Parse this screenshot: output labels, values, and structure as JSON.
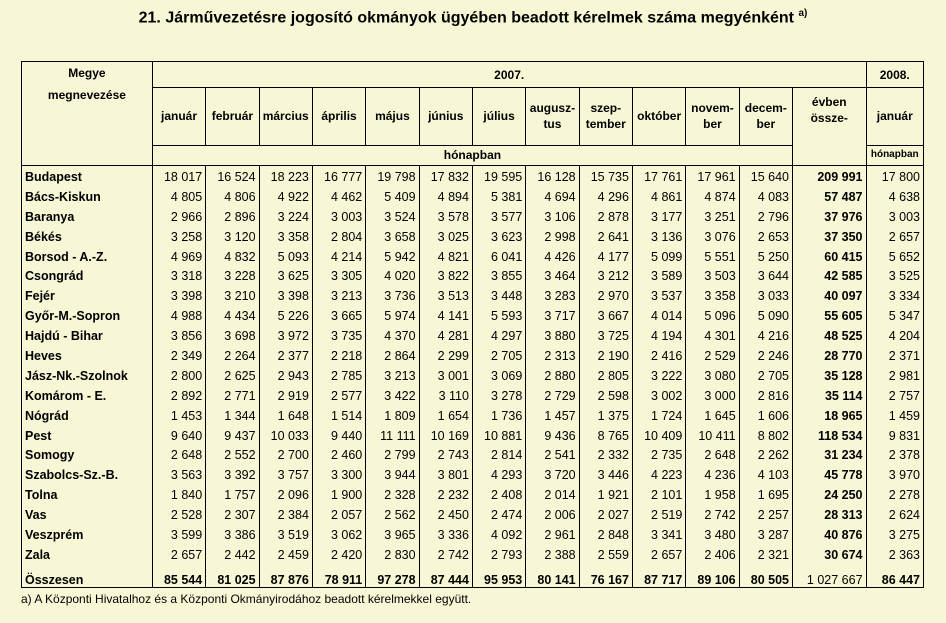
{
  "title": "21. Járművezetésre jogosító okmányok ügyében beadott kérelmek száma megyénként",
  "title_note": "a)",
  "header": {
    "county_label_1": "Megye",
    "county_label_2": "megnevezése",
    "year_2007": "2007.",
    "year_2008": "2008.",
    "months": [
      [
        "január"
      ],
      [
        "február"
      ],
      [
        "március"
      ],
      [
        "április"
      ],
      [
        "május"
      ],
      [
        "június"
      ],
      [
        "július"
      ],
      [
        "augusz-",
        "tus"
      ],
      [
        "szep-",
        "tember"
      ],
      [
        "október"
      ],
      [
        "novem-",
        "ber"
      ],
      [
        "decem-",
        "ber"
      ]
    ],
    "annual_1": "évben",
    "annual_2": "össze-",
    "jan_2008": "január",
    "unit_2007": "hónapban",
    "unit_2008": "hónapban"
  },
  "rows": [
    {
      "name": "Budapest",
      "values": [
        "18 017",
        "16 524",
        "18 223",
        "16 777",
        "19 798",
        "17 832",
        "19 595",
        "16 128",
        "15 735",
        "17 761",
        "17 961",
        "15 640"
      ],
      "total": "209 991",
      "jan2008": "17 800"
    },
    {
      "name": "Bács-Kiskun",
      "values": [
        "4 805",
        "4 806",
        "4 922",
        "4 462",
        "5 409",
        "4 894",
        "5 381",
        "4 694",
        "4 296",
        "4 861",
        "4 874",
        "4 083"
      ],
      "total": "57 487",
      "jan2008": "4 638"
    },
    {
      "name": "Baranya",
      "values": [
        "2 966",
        "2 896",
        "3 224",
        "3 003",
        "3 524",
        "3 578",
        "3 577",
        "3 106",
        "2 878",
        "3 177",
        "3 251",
        "2 796"
      ],
      "total": "37 976",
      "jan2008": "3 003"
    },
    {
      "name": "Békés",
      "values": [
        "3 258",
        "3 120",
        "3 358",
        "2 804",
        "3 658",
        "3 025",
        "3 623",
        "2 998",
        "2 641",
        "3 136",
        "3 076",
        "2 653"
      ],
      "total": "37 350",
      "jan2008": "2 657"
    },
    {
      "name": "Borsod - A.-Z.",
      "values": [
        "4 969",
        "4 832",
        "5 093",
        "4 214",
        "5 942",
        "4 821",
        "6 041",
        "4 426",
        "4 177",
        "5 099",
        "5 551",
        "5 250"
      ],
      "total": "60 415",
      "jan2008": "5 652"
    },
    {
      "name": "Csongrád",
      "values": [
        "3 318",
        "3 228",
        "3 625",
        "3 305",
        "4 020",
        "3 822",
        "3 855",
        "3 464",
        "3 212",
        "3 589",
        "3 503",
        "3 644"
      ],
      "total": "42 585",
      "jan2008": "3 525"
    },
    {
      "name": "Fejér",
      "values": [
        "3 398",
        "3 210",
        "3 398",
        "3 213",
        "3 736",
        "3 513",
        "3 448",
        "3 283",
        "2 970",
        "3 537",
        "3 358",
        "3 033"
      ],
      "total": "40 097",
      "jan2008": "3 334"
    },
    {
      "name": "Győr-M.-Sopron",
      "values": [
        "4 988",
        "4 434",
        "5 226",
        "3 665",
        "5 974",
        "4 141",
        "5 593",
        "3 717",
        "3 667",
        "4 014",
        "5 096",
        "5 090"
      ],
      "total": "55 605",
      "jan2008": "5 347"
    },
    {
      "name": "Hajdú - Bihar",
      "values": [
        "3 856",
        "3 698",
        "3 972",
        "3 735",
        "4 370",
        "4 281",
        "4 297",
        "3 880",
        "3 725",
        "4 194",
        "4 301",
        "4 216"
      ],
      "total": "48 525",
      "jan2008": "4 204"
    },
    {
      "name": "Heves",
      "values": [
        "2 349",
        "2 264",
        "2 377",
        "2 218",
        "2 864",
        "2 299",
        "2 705",
        "2 313",
        "2 190",
        "2 416",
        "2 529",
        "2 246"
      ],
      "total": "28 770",
      "jan2008": "2 371"
    },
    {
      "name": "Jász-Nk.-Szolnok",
      "values": [
        "2 800",
        "2 625",
        "2 943",
        "2 785",
        "3 213",
        "3 001",
        "3 069",
        "2 880",
        "2 805",
        "3 222",
        "3 080",
        "2 705"
      ],
      "total": "35 128",
      "jan2008": "2 981"
    },
    {
      "name": "Komárom - E.",
      "values": [
        "2 892",
        "2 771",
        "2 919",
        "2 577",
        "3 422",
        "3 110",
        "3 278",
        "2 729",
        "2 598",
        "3 002",
        "3 000",
        "2 816"
      ],
      "total": "35 114",
      "jan2008": "2 757"
    },
    {
      "name": "Nógrád",
      "values": [
        "1 453",
        "1 344",
        "1 648",
        "1 514",
        "1 809",
        "1 654",
        "1 736",
        "1 457",
        "1 375",
        "1 724",
        "1 645",
        "1 606"
      ],
      "total": "18 965",
      "jan2008": "1 459"
    },
    {
      "name": "Pest",
      "values": [
        "9 640",
        "9 437",
        "10 033",
        "9 440",
        "11 111",
        "10 169",
        "10 881",
        "9 436",
        "8 765",
        "10 409",
        "10 411",
        "8 802"
      ],
      "total": "118 534",
      "jan2008": "9 831"
    },
    {
      "name": "Somogy",
      "values": [
        "2 648",
        "2 552",
        "2 700",
        "2 460",
        "2 799",
        "2 743",
        "2 814",
        "2 541",
        "2 332",
        "2 735",
        "2 648",
        "2 262"
      ],
      "total": "31 234",
      "jan2008": "2 378"
    },
    {
      "name": "Szabolcs-Sz.-B.",
      "values": [
        "3 563",
        "3 392",
        "3 757",
        "3 300",
        "3 944",
        "3 801",
        "4 293",
        "3 720",
        "3 446",
        "4 223",
        "4 236",
        "4 103"
      ],
      "total": "45 778",
      "jan2008": "3 970"
    },
    {
      "name": "Tolna",
      "values": [
        "1 840",
        "1 757",
        "2 096",
        "1 900",
        "2 328",
        "2 232",
        "2 408",
        "2 014",
        "1 921",
        "2 101",
        "1 958",
        "1 695"
      ],
      "total": "24 250",
      "jan2008": "2 278"
    },
    {
      "name": "Vas",
      "values": [
        "2 528",
        "2 307",
        "2 384",
        "2 057",
        "2 562",
        "2 450",
        "2 474",
        "2 006",
        "2 027",
        "2 519",
        "2 742",
        "2 257"
      ],
      "total": "28 313",
      "jan2008": "2 624"
    },
    {
      "name": "Veszprém",
      "values": [
        "3 599",
        "3 386",
        "3 519",
        "3 062",
        "3 965",
        "3 336",
        "4 092",
        "2 961",
        "2 848",
        "3 341",
        "3 480",
        "3 287"
      ],
      "total": "40 876",
      "jan2008": "3 275"
    },
    {
      "name": "Zala",
      "values": [
        "2 657",
        "2 442",
        "2 459",
        "2 420",
        "2 830",
        "2 742",
        "2 793",
        "2 388",
        "2 559",
        "2 657",
        "2 406",
        "2 321"
      ],
      "total": "30 674",
      "jan2008": "2 363"
    }
  ],
  "sum_row": {
    "name": "Összesen",
    "values": [
      "85 544",
      "81 025",
      "87 876",
      "78 911",
      "97 278",
      "87 444",
      "95 953",
      "80 141",
      "76 167",
      "87 717",
      "89 106",
      "80 505"
    ],
    "total": "1 027 667",
    "jan2008": "86 447"
  },
  "footnote": "a) A Központi Hivatalhoz és a Központi Okmányirodához beadott kérelmekkel együtt."
}
